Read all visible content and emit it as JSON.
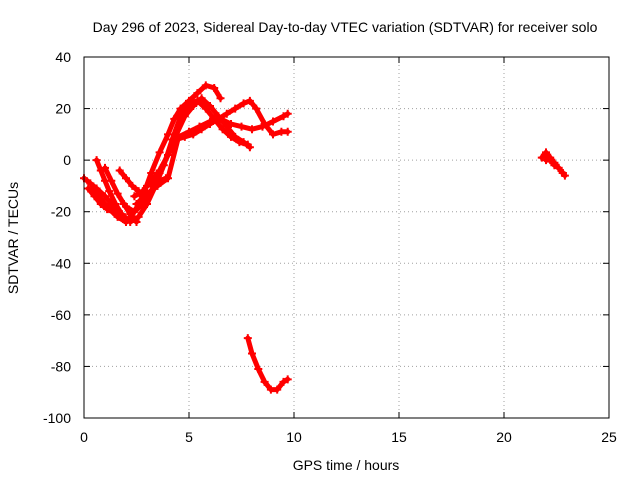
{
  "chart_data": {
    "type": "line",
    "title": "Day 296 of 2023, Sidereal Day-to-day VTEC variation (SDTVAR) for receiver solo",
    "xlabel": "GPS time / hours",
    "ylabel": "SDTVAR / TECUs",
    "xlim": [
      0,
      25
    ],
    "ylim": [
      -100,
      40
    ],
    "xticks": [
      0,
      5,
      10,
      15,
      20,
      25
    ],
    "yticks": [
      -100,
      -80,
      -60,
      -40,
      -20,
      0,
      20,
      40
    ],
    "grid": true,
    "color": "#ff0000",
    "series": [
      {
        "x": [
          0.0,
          0.3,
          0.6,
          1.0,
          1.3,
          1.6,
          1.9
        ],
        "y": [
          -7,
          -9,
          -11,
          -14,
          -17,
          -20,
          -23
        ]
      },
      {
        "x": [
          0.2,
          0.5,
          0.8,
          1.1,
          1.4,
          1.7,
          2.0
        ],
        "y": [
          -11,
          -14,
          -17,
          -19,
          -20,
          -22,
          -24
        ]
      },
      {
        "x": [
          0.6,
          0.8,
          1.0,
          1.2,
          1.5,
          1.8,
          2.0
        ],
        "y": [
          0,
          -4,
          -8,
          -12,
          -17,
          -21,
          -24
        ]
      },
      {
        "x": [
          1.0,
          1.3,
          1.6,
          1.9,
          2.2,
          2.5
        ],
        "y": [
          -3,
          -8,
          -13,
          -17,
          -21,
          -24
        ]
      },
      {
        "x": [
          1.7,
          2.0,
          2.3,
          2.6,
          2.8
        ],
        "y": [
          -4,
          -7,
          -10,
          -12,
          -14
        ]
      },
      {
        "x": [
          0.4,
          0.8,
          1.2,
          1.6,
          2.0,
          2.4,
          2.8,
          3.2,
          3.6,
          4.0,
          4.3,
          4.6,
          5.0,
          5.4,
          5.8,
          6.2,
          6.5
        ],
        "y": [
          -11,
          -15,
          -19,
          -22,
          -24,
          -20,
          -14,
          -5,
          3,
          10,
          16,
          20,
          23,
          26,
          29,
          28,
          24
        ]
      },
      {
        "x": [
          1.8,
          2.2,
          2.6,
          3.0,
          3.4,
          3.8,
          4.2,
          4.6,
          5.0,
          5.4,
          5.8,
          6.2,
          6.6,
          7.0,
          7.4,
          7.8
        ],
        "y": [
          -21,
          -24,
          -22,
          -17,
          -10,
          -2,
          8,
          17,
          22,
          23,
          20,
          16,
          12,
          9,
          7,
          6
        ]
      },
      {
        "x": [
          2.0,
          2.4,
          2.8,
          3.2,
          3.6,
          4.0,
          4.4,
          4.8,
          5.2,
          5.6,
          6.0,
          6.4,
          6.8,
          7.2,
          7.6,
          7.9
        ],
        "y": [
          -18,
          -20,
          -17,
          -12,
          -5,
          2,
          10,
          17,
          21,
          24,
          21,
          17,
          13,
          9,
          7,
          5
        ]
      },
      {
        "x": [
          2.4,
          2.8,
          3.2,
          3.6,
          4.0,
          4.4,
          4.8,
          5.2,
          5.6,
          6.0,
          6.4,
          6.8,
          7.2,
          7.6,
          7.9,
          8.2,
          8.6,
          9.0,
          9.4,
          9.7
        ],
        "y": [
          -14,
          -12,
          -8,
          -4,
          2,
          8,
          9,
          10,
          12,
          14,
          16,
          18,
          20,
          22,
          23,
          20,
          14,
          10,
          11,
          11
        ]
      },
      {
        "x": [
          2.5,
          3.0,
          3.5,
          4.0,
          4.5,
          5.0,
          5.5,
          6.0,
          6.5,
          7.0,
          7.5,
          8.0,
          8.5,
          9.0,
          9.5,
          9.7
        ],
        "y": [
          -17,
          -13,
          -10,
          -7,
          9,
          11,
          13,
          15,
          16,
          14,
          13,
          12,
          13,
          15,
          17,
          18
        ]
      },
      {
        "x": [
          3.0,
          3.3,
          3.6,
          3.9
        ],
        "y": [
          -10,
          -9,
          -8,
          -7
        ]
      },
      {
        "x": [
          7.8,
          8.0,
          8.3,
          8.6,
          8.9,
          9.2,
          9.5,
          9.7
        ],
        "y": [
          -69,
          -75,
          -81,
          -86,
          -89,
          -89,
          -86,
          -85
        ]
      },
      {
        "x": [
          21.8,
          22.0,
          22.2,
          22.4,
          22.6,
          22.8,
          22.9
        ],
        "y": [
          1,
          3,
          1,
          -1,
          -3,
          -5,
          -6
        ]
      },
      {
        "x": [
          22.0,
          22.2,
          22.4,
          22.6,
          22.8
        ],
        "y": [
          0,
          0,
          -2,
          -3,
          -5
        ]
      }
    ]
  }
}
